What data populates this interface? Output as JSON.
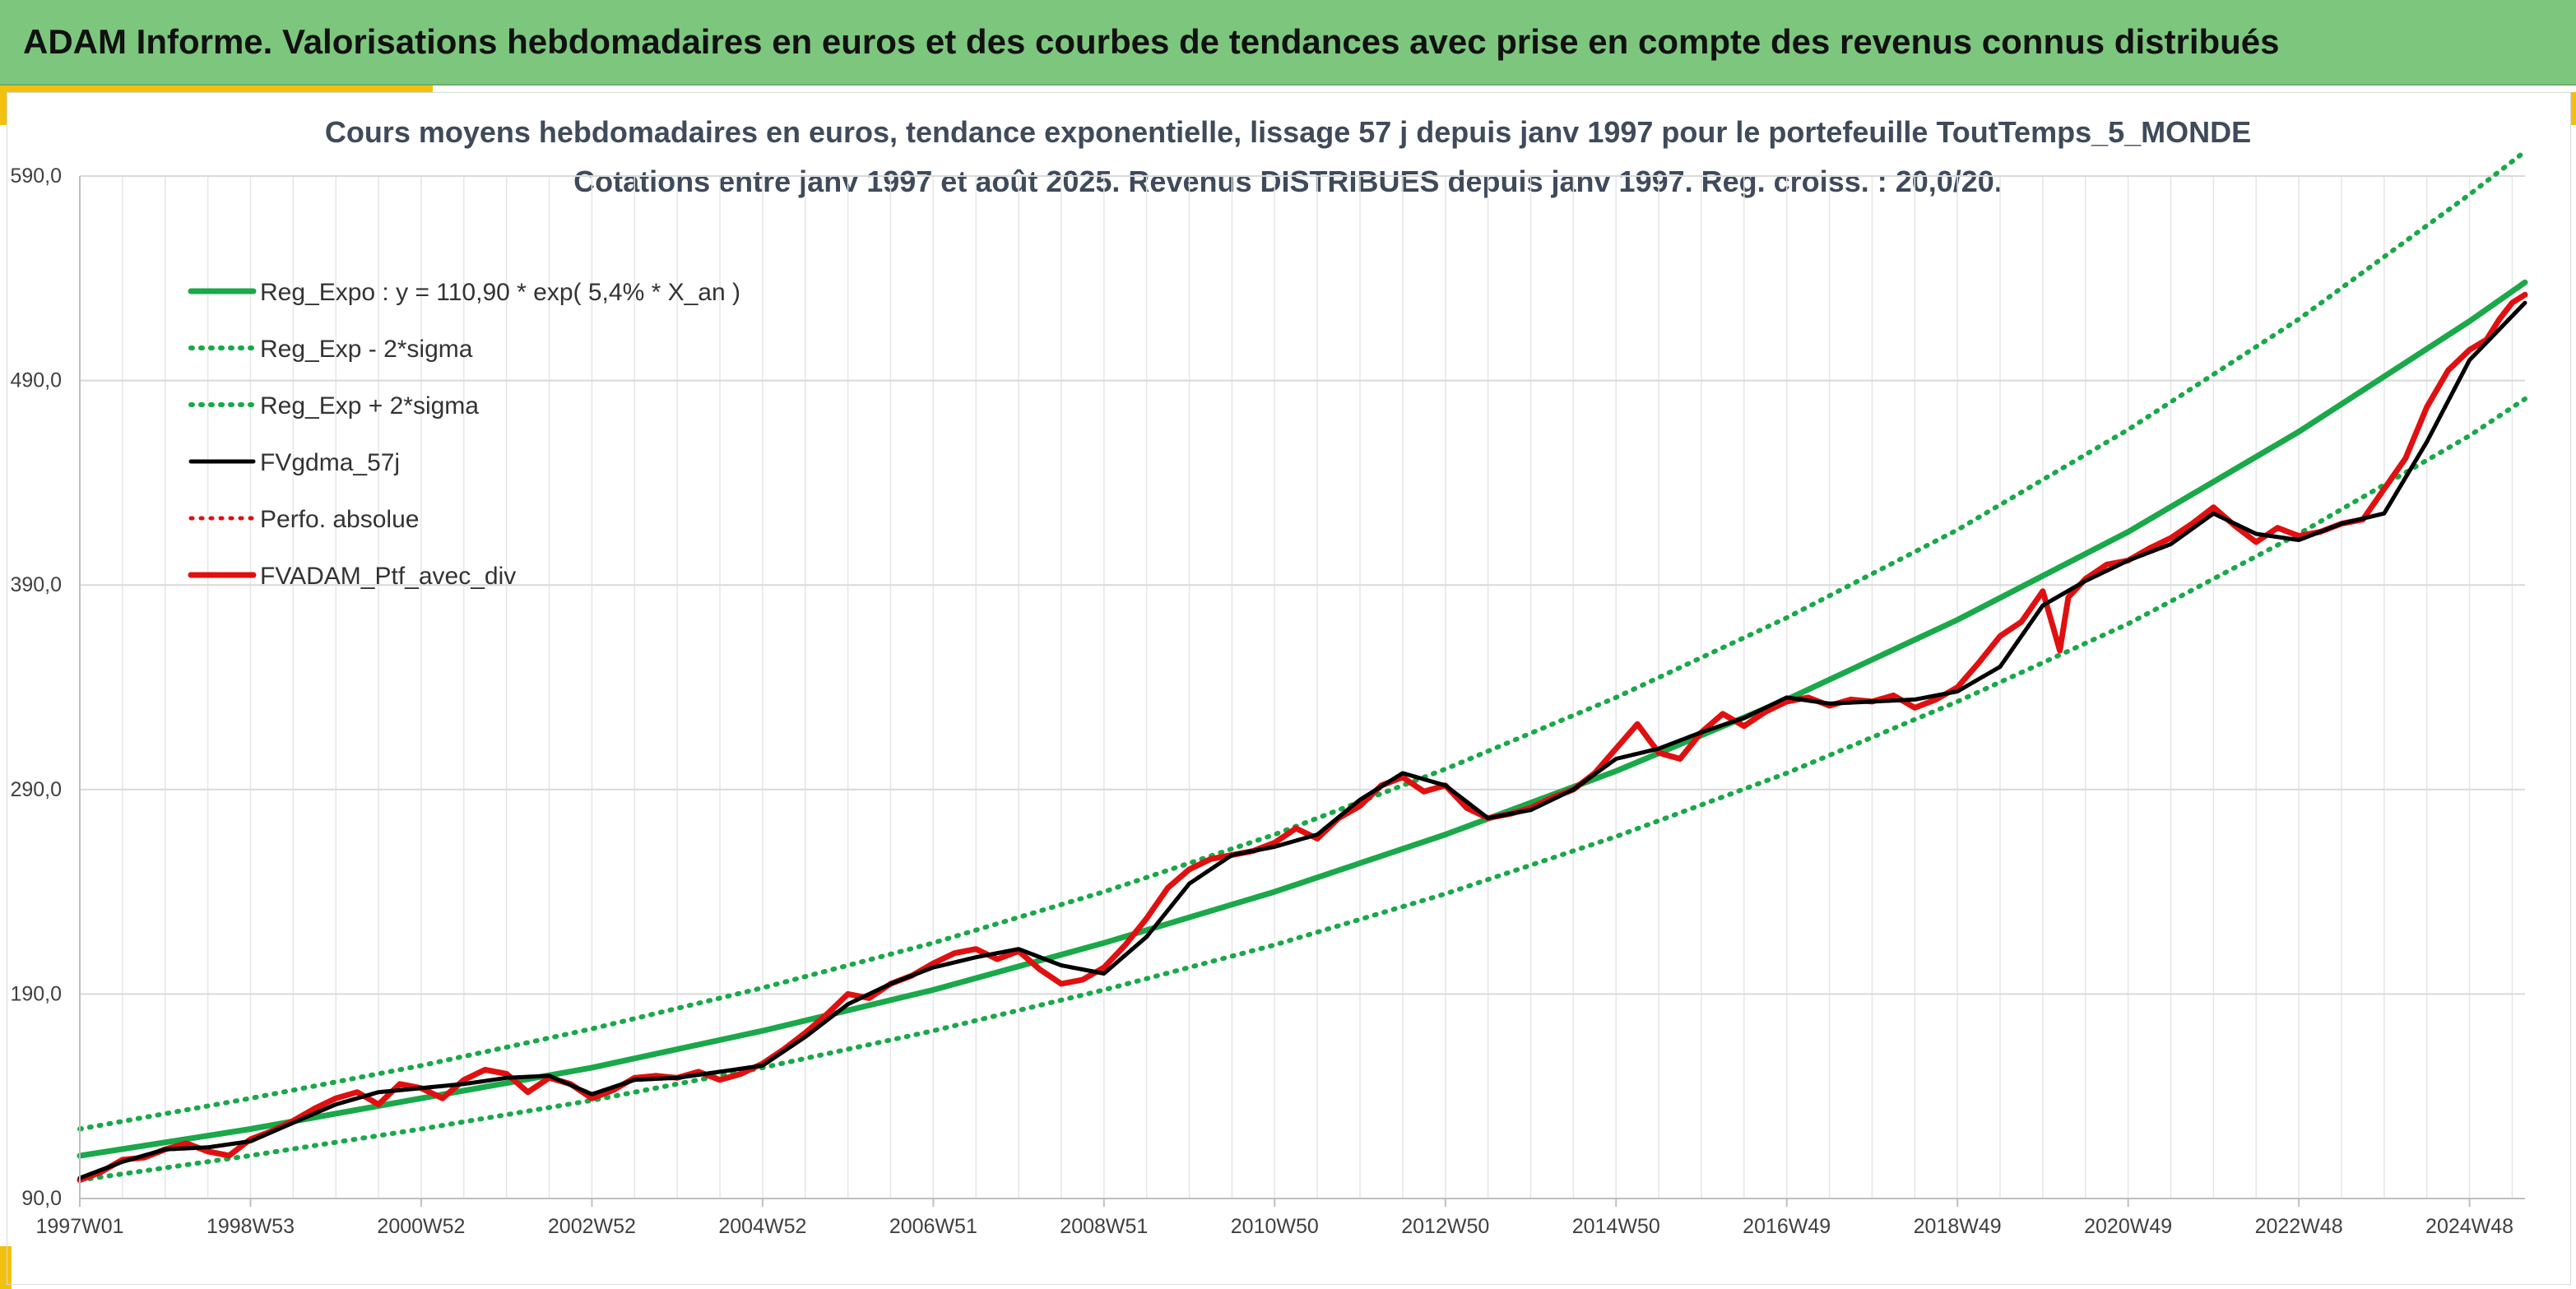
{
  "header": {
    "title": "ADAM Informe. Valorisations hebdomadaires en euros et des courbes de tendances avec prise en compte des revenus connus distribués"
  },
  "colors": {
    "header_bg": "#7dc67e",
    "accent": "#f2c10f",
    "trend_green": "#1aa84a",
    "fund_black": "#000000",
    "portfolio_red": "#e01010"
  },
  "chart_data": {
    "type": "line",
    "title": "Cours moyens hebdomadaires en euros, tendance exponentielle, lissage 57 j depuis janv 1997 pour le portefeuille ToutTemps_5_MONDE",
    "subtitle": "Cotations entre janv 1997 et août 2025. Revenus DISTRIBUES depuis janv 1997. Reg. croiss. : 20,0/20.",
    "xlabel": "",
    "ylabel": "",
    "ylim": [
      90,
      590
    ],
    "xlim": [
      1997.0,
      2025.65
    ],
    "grid": true,
    "legend_position": "top-left",
    "y_ticks": [
      "90,0",
      "190,0",
      "290,0",
      "390,0",
      "490,0",
      "590,0"
    ],
    "x_ticks": [
      {
        "label": "1997W01",
        "x": 1997.0
      },
      {
        "label": "1998W53",
        "x": 1999.0
      },
      {
        "label": "2000W52",
        "x": 2001.0
      },
      {
        "label": "2002W52",
        "x": 2003.0
      },
      {
        "label": "2004W52",
        "x": 2005.0
      },
      {
        "label": "2006W51",
        "x": 2007.0
      },
      {
        "label": "2008W51",
        "x": 2009.0
      },
      {
        "label": "2010W50",
        "x": 2011.0
      },
      {
        "label": "2012W50",
        "x": 2013.0
      },
      {
        "label": "2014W50",
        "x": 2015.0
      },
      {
        "label": "2016W49",
        "x": 2017.0
      },
      {
        "label": "2018W49",
        "x": 2019.0
      },
      {
        "label": "2020W49",
        "x": 2021.0
      },
      {
        "label": "2022W48",
        "x": 2023.0
      },
      {
        "label": "2024W48",
        "x": 2025.0
      }
    ],
    "series": [
      {
        "name": "Reg_Expo : y = 110,90 * exp( 5,4% *  X_an )",
        "kind": "trend",
        "style": "solid",
        "color": "#1aa84a",
        "x": [
          1997.0,
          1999.0,
          2001.0,
          2003.0,
          2005.0,
          2007.0,
          2009.0,
          2011.0,
          2013.0,
          2015.0,
          2017.0,
          2019.0,
          2021.0,
          2023.0,
          2025.0,
          2025.65
        ],
        "values": [
          110.9,
          124,
          139,
          154,
          172,
          192,
          215,
          240,
          268,
          299,
          334,
          373,
          416,
          465,
          519,
          538
        ]
      },
      {
        "name": "Reg_Exp - 2*sigma",
        "kind": "trend",
        "style": "dotted",
        "color": "#1aa84a",
        "x": [
          1997.0,
          1999.0,
          2001.0,
          2003.0,
          2005.0,
          2007.0,
          2009.0,
          2011.0,
          2013.0,
          2015.0,
          2017.0,
          2019.0,
          2021.0,
          2023.0,
          2025.0,
          2025.65
        ],
        "values": [
          99,
          111,
          124,
          138,
          154,
          172,
          192,
          214,
          239,
          267,
          298,
          333,
          371,
          415,
          463,
          481
        ]
      },
      {
        "name": "Reg_Exp + 2*sigma",
        "kind": "trend",
        "style": "dotted",
        "color": "#1aa84a",
        "x": [
          1997.0,
          1999.0,
          2001.0,
          2003.0,
          2005.0,
          2007.0,
          2009.0,
          2011.0,
          2013.0,
          2015.0,
          2017.0,
          2019.0,
          2021.0,
          2023.0,
          2025.0,
          2025.65
        ],
        "values": [
          124,
          139,
          155,
          173,
          193,
          215,
          240,
          268,
          300,
          335,
          374,
          417,
          466,
          520,
          581,
          602
        ]
      },
      {
        "name": "FVgdma_57j",
        "kind": "smoothed",
        "style": "solid",
        "color": "#000000",
        "x": [
          1997.0,
          1997.5,
          1998.0,
          1998.5,
          1999.0,
          1999.5,
          2000.0,
          2000.5,
          2001.0,
          2001.5,
          2002.0,
          2002.5,
          2003.0,
          2003.5,
          2004.0,
          2004.5,
          2005.0,
          2005.5,
          2006.0,
          2006.5,
          2007.0,
          2007.5,
          2008.0,
          2008.5,
          2009.0,
          2009.5,
          2010.0,
          2010.5,
          2011.0,
          2011.5,
          2012.0,
          2012.5,
          2013.0,
          2013.5,
          2014.0,
          2014.5,
          2015.0,
          2015.5,
          2016.0,
          2016.5,
          2017.0,
          2017.5,
          2018.0,
          2018.5,
          2019.0,
          2019.5,
          2020.0,
          2020.5,
          2021.0,
          2021.5,
          2022.0,
          2022.5,
          2023.0,
          2023.5,
          2024.0,
          2024.5,
          2025.0,
          2025.65
        ],
        "values": [
          100,
          108,
          114,
          115,
          118,
          127,
          136,
          142,
          144,
          146,
          149,
          150,
          141,
          148,
          149,
          152,
          155,
          169,
          185,
          195,
          203,
          208,
          212,
          204,
          200,
          218,
          244,
          258,
          262,
          268,
          285,
          298,
          292,
          276,
          280,
          290,
          305,
          310,
          318,
          325,
          335,
          332,
          333,
          334,
          338,
          350,
          380,
          392,
          402,
          410,
          425,
          415,
          412,
          420,
          425,
          460,
          500,
          528
        ]
      },
      {
        "name": "Perfo. absolue",
        "kind": "performance",
        "style": "dotted",
        "color": "#e01010",
        "x": [
          1997.0,
          1997.5,
          1998.0,
          1998.5,
          1999.0,
          1999.5,
          2000.0,
          2000.5,
          2001.0,
          2001.5,
          2002.0,
          2002.5,
          2003.0,
          2003.5,
          2004.0,
          2004.5,
          2005.0,
          2005.5,
          2006.0,
          2006.5,
          2007.0,
          2007.5,
          2008.0,
          2008.5,
          2009.0,
          2009.5,
          2010.0,
          2010.5,
          2011.0,
          2011.5,
          2012.0,
          2012.5,
          2013.0,
          2013.5,
          2014.0,
          2014.5,
          2015.0,
          2015.5,
          2016.0,
          2016.5,
          2017.0,
          2017.5,
          2018.0,
          2018.5,
          2019.0,
          2019.5,
          2020.0,
          2020.5,
          2021.0,
          2021.5,
          2022.0,
          2022.5,
          2023.0,
          2023.5,
          2024.0,
          2024.5,
          2025.0,
          2025.65
        ],
        "values": [
          100,
          108,
          114,
          115,
          118,
          127,
          136,
          142,
          144,
          146,
          149,
          150,
          141,
          148,
          149,
          152,
          155,
          169,
          185,
          195,
          203,
          208,
          212,
          204,
          200,
          218,
          244,
          258,
          262,
          268,
          285,
          298,
          292,
          276,
          280,
          290,
          305,
          310,
          318,
          325,
          335,
          332,
          333,
          334,
          338,
          350,
          380,
          392,
          402,
          410,
          425,
          415,
          412,
          420,
          425,
          460,
          500,
          528
        ]
      },
      {
        "name": "FVADAM_Ptf_avec_div",
        "kind": "portfolio",
        "style": "solid",
        "color": "#e01010",
        "x": [
          1997.0,
          1997.25,
          1997.5,
          1997.75,
          1998.0,
          1998.25,
          1998.5,
          1998.75,
          1999.0,
          1999.25,
          1999.5,
          1999.75,
          2000.0,
          2000.25,
          2000.5,
          2000.75,
          2001.0,
          2001.25,
          2001.5,
          2001.75,
          2002.0,
          2002.25,
          2002.5,
          2002.75,
          2003.0,
          2003.25,
          2003.5,
          2003.75,
          2004.0,
          2004.25,
          2004.5,
          2004.75,
          2005.0,
          2005.25,
          2005.5,
          2005.75,
          2006.0,
          2006.25,
          2006.5,
          2006.75,
          2007.0,
          2007.25,
          2007.5,
          2007.75,
          2008.0,
          2008.25,
          2008.5,
          2008.75,
          2009.0,
          2009.25,
          2009.5,
          2009.75,
          2010.0,
          2010.25,
          2010.5,
          2010.75,
          2011.0,
          2011.25,
          2011.5,
          2011.75,
          2012.0,
          2012.25,
          2012.5,
          2012.75,
          2013.0,
          2013.25,
          2013.5,
          2013.75,
          2014.0,
          2014.25,
          2014.5,
          2014.75,
          2015.0,
          2015.25,
          2015.5,
          2015.75,
          2016.0,
          2016.25,
          2016.5,
          2016.75,
          2017.0,
          2017.25,
          2017.5,
          2017.75,
          2018.0,
          2018.25,
          2018.5,
          2018.75,
          2019.0,
          2019.25,
          2019.5,
          2019.75,
          2020.0,
          2020.2,
          2020.3,
          2020.5,
          2020.75,
          2021.0,
          2021.25,
          2021.5,
          2021.75,
          2022.0,
          2022.25,
          2022.5,
          2022.75,
          2023.0,
          2023.25,
          2023.5,
          2023.75,
          2024.0,
          2024.25,
          2024.5,
          2024.75,
          2025.0,
          2025.2,
          2025.35,
          2025.5,
          2025.65
        ],
        "values": [
          99,
          103,
          109,
          110,
          114,
          117,
          113,
          111,
          119,
          123,
          128,
          134,
          139,
          142,
          136,
          146,
          144,
          139,
          148,
          153,
          151,
          142,
          149,
          146,
          139,
          143,
          149,
          150,
          149,
          152,
          148,
          151,
          156,
          163,
          171,
          180,
          190,
          188,
          195,
          199,
          205,
          210,
          212,
          207,
          211,
          202,
          195,
          197,
          203,
          214,
          227,
          242,
          251,
          256,
          258,
          260,
          264,
          271,
          266,
          276,
          282,
          292,
          296,
          289,
          292,
          281,
          276,
          278,
          281,
          286,
          290,
          298,
          310,
          322,
          308,
          305,
          318,
          327,
          321,
          328,
          333,
          335,
          331,
          334,
          333,
          336,
          330,
          334,
          340,
          352,
          365,
          372,
          387,
          358,
          384,
          393,
          400,
          402,
          408,
          413,
          420,
          428,
          419,
          411,
          418,
          414,
          416,
          420,
          422,
          437,
          452,
          477,
          495,
          505,
          510,
          520,
          528,
          532
        ]
      }
    ]
  }
}
